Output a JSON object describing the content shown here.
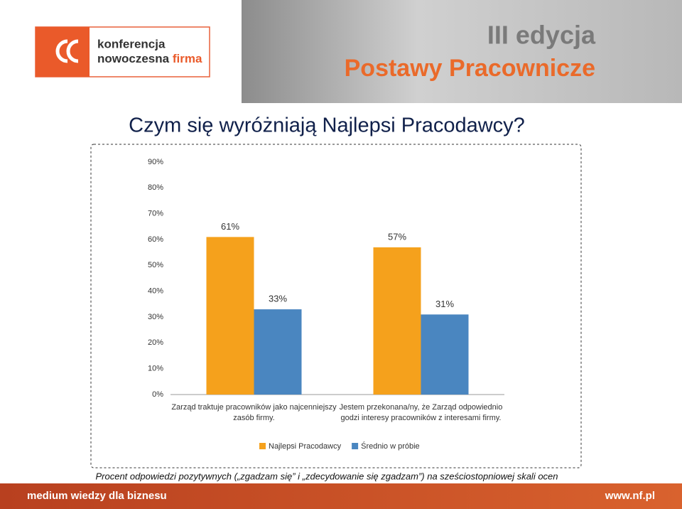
{
  "header": {
    "logo_line1": "konferencja",
    "logo_line2": "nowoczesna",
    "logo_line3": "firma",
    "edition": "III edycja",
    "event": "Postawy Pracownicze"
  },
  "slide_title": "Czym się wyróżniają Najlepsi Pracodawcy?",
  "chart_data": {
    "type": "bar",
    "categories": [
      "Zarząd traktuje pracowników jako najcenniejszy zasób firmy.",
      "Jestem przekonana/ny, że Zarząd odpowiednio godzi interesy pracowników z interesami firmy."
    ],
    "series": [
      {
        "name": "Najlepsi Pracodawcy",
        "color": "#f5a11c",
        "values": [
          61,
          57
        ],
        "value_labels": [
          "61%",
          "57%"
        ]
      },
      {
        "name": "Średnio w próbie",
        "color": "#4a86c0",
        "values": [
          33,
          31
        ],
        "value_labels": [
          "33%",
          "31%"
        ]
      }
    ],
    "ylim": [
      0,
      90
    ],
    "yticks": [
      {
        "value": 0,
        "label": "0%"
      },
      {
        "value": 10,
        "label": "10%"
      },
      {
        "value": 20,
        "label": "20%"
      },
      {
        "value": 30,
        "label": "30%"
      },
      {
        "value": 40,
        "label": "40%"
      },
      {
        "value": 50,
        "label": "50%"
      },
      {
        "value": 60,
        "label": "60%"
      },
      {
        "value": 70,
        "label": "70%"
      },
      {
        "value": 80,
        "label": "80%"
      },
      {
        "value": 90,
        "label": "90%"
      }
    ],
    "grid": false,
    "legend": "bottom"
  },
  "footnote": "Procent odpowiedzi pozytywnych („zgadzam się” i „zdecydowanie się zgadzam”) na sześciostopniowej skali ocen",
  "footer": {
    "left": "medium wiedzy dla biznesu",
    "right": "www.nf.pl"
  }
}
